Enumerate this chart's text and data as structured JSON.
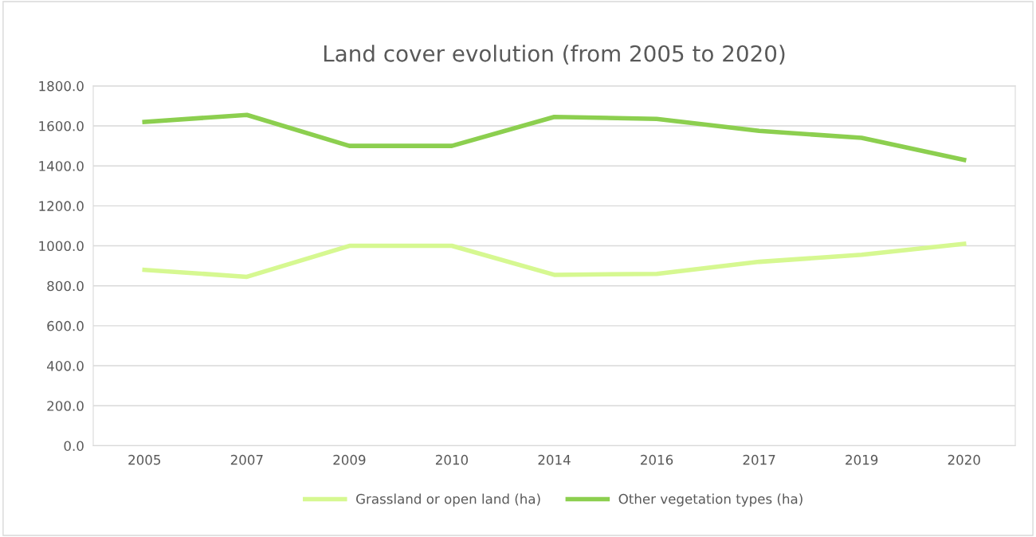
{
  "chart_data": {
    "type": "line",
    "title": "Land cover evolution (from 2005 to 2020)",
    "categories": [
      "2005",
      "2007",
      "2009",
      "2010",
      "2014",
      "2016",
      "2017",
      "2019",
      "2020"
    ],
    "series": [
      {
        "name": "Grassland or open land (ha)",
        "color": "#d6f891",
        "values": [
          880,
          845,
          1000,
          1000,
          855,
          860,
          920,
          955,
          1010
        ]
      },
      {
        "name": "Other vegetation types (ha)",
        "color": "#8ccf4f",
        "values": [
          1620,
          1655,
          1500,
          1500,
          1645,
          1635,
          1575,
          1540,
          1430
        ]
      }
    ],
    "ylim": [
      0,
      1800
    ],
    "yticks": [
      {
        "value": 0,
        "label": "0.0"
      },
      {
        "value": 200,
        "label": "200.0"
      },
      {
        "value": 400,
        "label": "400.0"
      },
      {
        "value": 600,
        "label": "600.0"
      },
      {
        "value": 800,
        "label": "800.0"
      },
      {
        "value": 1000,
        "label": "1000.0"
      },
      {
        "value": 1200,
        "label": "1200.0"
      },
      {
        "value": 1400,
        "label": "1400.0"
      },
      {
        "value": 1600,
        "label": "1600.0"
      },
      {
        "value": 1800,
        "label": "1800.0"
      }
    ],
    "grid": "y",
    "legend": "bottom",
    "marker": "none",
    "line_style": "solid"
  }
}
